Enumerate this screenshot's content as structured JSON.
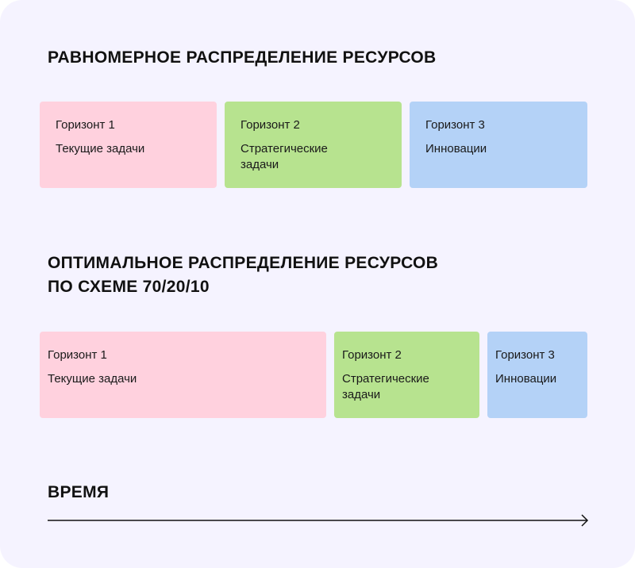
{
  "equal": {
    "title": "Равномерное распределение ресурсов",
    "boxes": [
      {
        "title": "Горизонт 1",
        "desc": "Текущие задачи",
        "color": "#ffd1de"
      },
      {
        "title": "Горизонт 2",
        "desc": "Стратегические задачи",
        "color": "#b7e38f"
      },
      {
        "title": "Горизонт 3",
        "desc": "Инновации",
        "color": "#b4d2f7"
      }
    ]
  },
  "optimal": {
    "title_line1": "Оптимальное распределение ресурсов",
    "title_line2": "по схеме 70/20/10",
    "boxes": [
      {
        "title": "Горизонт 1",
        "desc": "Текущие задачи",
        "share": 70
      },
      {
        "title": "Горизонт 2",
        "desc": "Стратегические задачи",
        "share": 20
      },
      {
        "title": "Горизонт 3",
        "desc": "Инновации",
        "share": 10
      }
    ]
  },
  "time": {
    "label": "Время"
  },
  "colors": {
    "background": "#f5f3ff",
    "horizon1": "#ffd1de",
    "horizon2": "#b7e38f",
    "horizon3": "#b4d2f7",
    "text": "#111111"
  }
}
